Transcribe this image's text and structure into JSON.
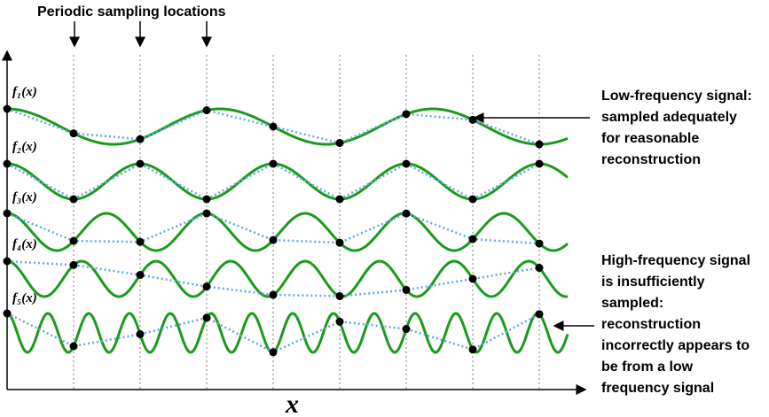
{
  "top_label": "Periodic sampling locations",
  "curve_labels": [
    "f₁(x)",
    "f₂(x)",
    "f₃(x)",
    "f₄(x)",
    "f₅(x)"
  ],
  "axis_label": "x",
  "annotations": [
    {
      "lines": [
        "Low-frequency signal:",
        "sampled adequately",
        "for reasonable",
        "reconstruction"
      ]
    },
    {
      "lines": [
        "High-frequency signal",
        "is insufficiently",
        "sampled:",
        "reconstruction",
        "incorrectly appears to",
        "be from a low",
        "frequency signal"
      ]
    }
  ]
}
